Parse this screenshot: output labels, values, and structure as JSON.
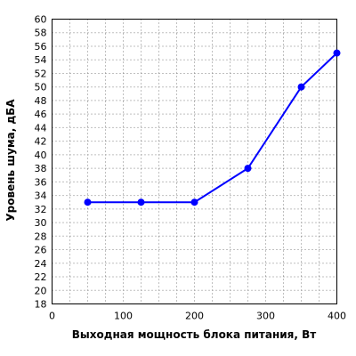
{
  "chart_data": {
    "type": "line",
    "title": "",
    "xlabel": "Выходная мощность блока питания, Вт",
    "ylabel": "Уровень шума, дБА",
    "xlim": [
      0,
      400
    ],
    "ylim": [
      18,
      60
    ],
    "xticks": [
      0,
      100,
      200,
      300,
      400
    ],
    "yticks": [
      18,
      20,
      22,
      24,
      26,
      28,
      30,
      32,
      34,
      36,
      38,
      40,
      42,
      44,
      46,
      48,
      50,
      52,
      54,
      56,
      58,
      60
    ],
    "grid": true,
    "series": [
      {
        "color": "#0000ff",
        "x": [
          50,
          125,
          200,
          275,
          350,
          400
        ],
        "y": [
          33,
          33,
          33,
          38,
          50,
          55
        ]
      }
    ]
  }
}
